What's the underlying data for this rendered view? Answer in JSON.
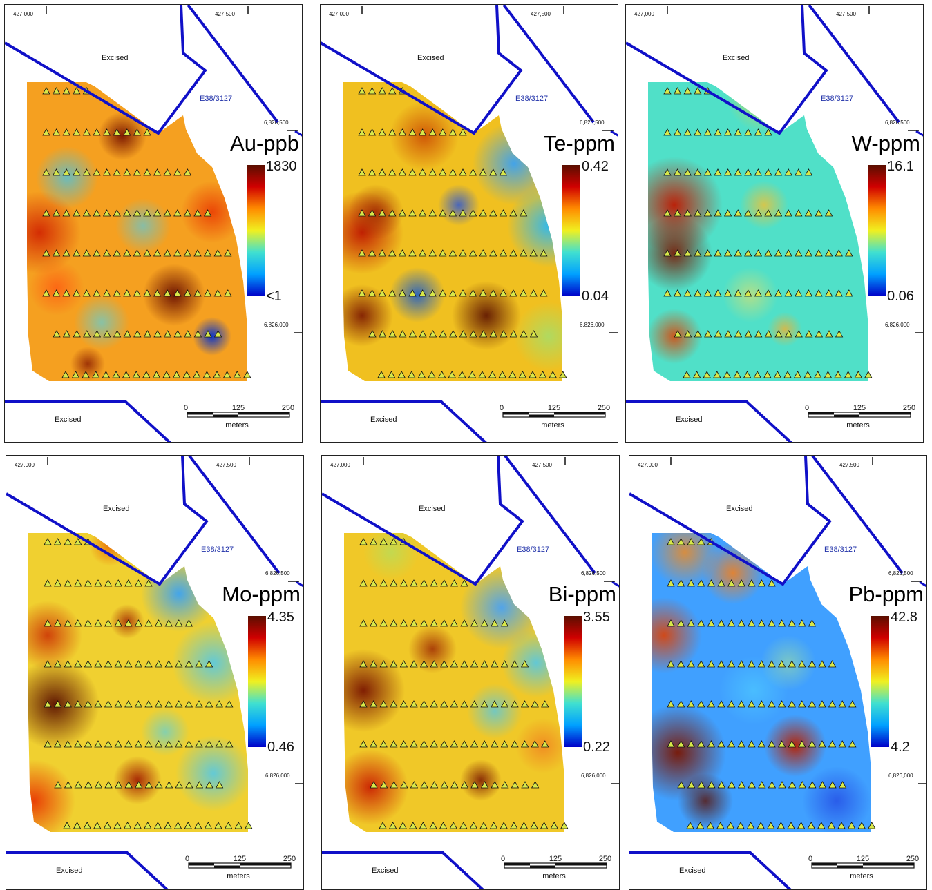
{
  "common": {
    "easting_left": "427,000",
    "easting_right": "427,500",
    "northing_top": "6,826,500",
    "northing_bottom": "6,826,000",
    "excised_label": "Excised",
    "tenement_label": "E38/3127",
    "scale_ticks": [
      "0",
      "125",
      "250"
    ],
    "scale_unit": "meters",
    "colors": {
      "boundary": "#1010c8",
      "sample_marker_fill": "#d8e84a",
      "ramp": [
        "#0000c8",
        "#00a0ff",
        "#40e0d0",
        "#f0f020",
        "#ff8c00",
        "#d00000",
        "#5a0f00"
      ]
    }
  },
  "panels": [
    {
      "element": "Au-ppb",
      "max": "1830",
      "min": "<1"
    },
    {
      "element": "Te-ppm",
      "max": "0.42",
      "min": "0.04"
    },
    {
      "element": "W-ppm",
      "max": "16.1",
      "min": "0.06"
    },
    {
      "element": "Mo-ppm",
      "max": "4.35",
      "min": "0.46"
    },
    {
      "element": "Bi-ppm",
      "max": "3.55",
      "min": "0.22"
    },
    {
      "element": "Pb-ppm",
      "max": "42.8",
      "min": "4.2"
    }
  ]
}
